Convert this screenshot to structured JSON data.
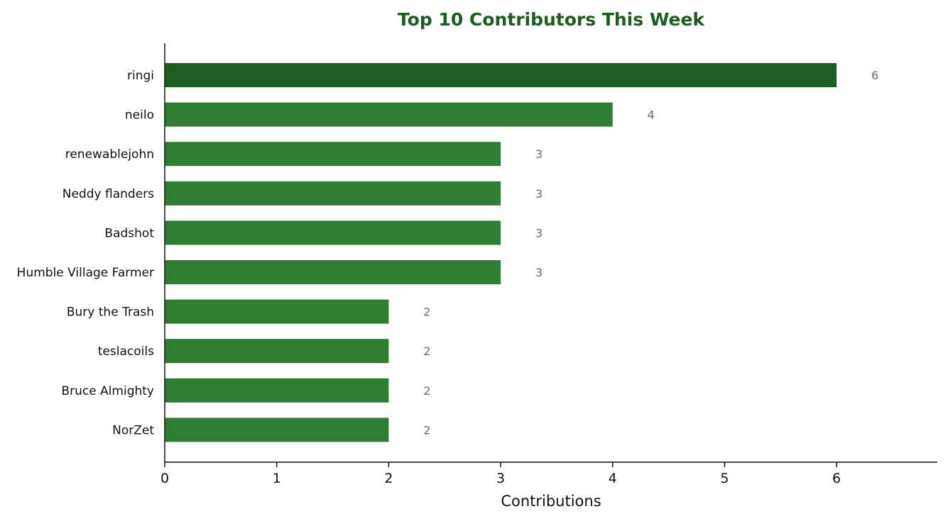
{
  "chart_data": {
    "type": "bar",
    "orientation": "horizontal",
    "title": "Top 10 Contributors This Week",
    "xlabel": "Contributions",
    "ylabel": "",
    "xlim": [
      0,
      6.9
    ],
    "xticks": [
      "0",
      "1",
      "2",
      "3",
      "4",
      "5",
      "6"
    ],
    "categories": [
      "ringi",
      "neilo",
      "renewablejohn",
      "Neddy flanders",
      "Badshot",
      "Humble Village Farmer",
      "Bury the Trash",
      "teslacoils",
      "Bruce Almighty",
      "NorZet"
    ],
    "values": [
      6,
      4,
      3,
      3,
      3,
      3,
      2,
      2,
      2,
      2
    ],
    "value_labels": [
      "6",
      "4",
      "3",
      "3",
      "3",
      "3",
      "2",
      "2",
      "2",
      "2"
    ],
    "grid": false,
    "colors": {
      "top_bar": "#1b5e20",
      "bar": "#2e7d32",
      "title": "#1b5e20",
      "value_label": "#5a7080",
      "axis": "#111111"
    }
  }
}
